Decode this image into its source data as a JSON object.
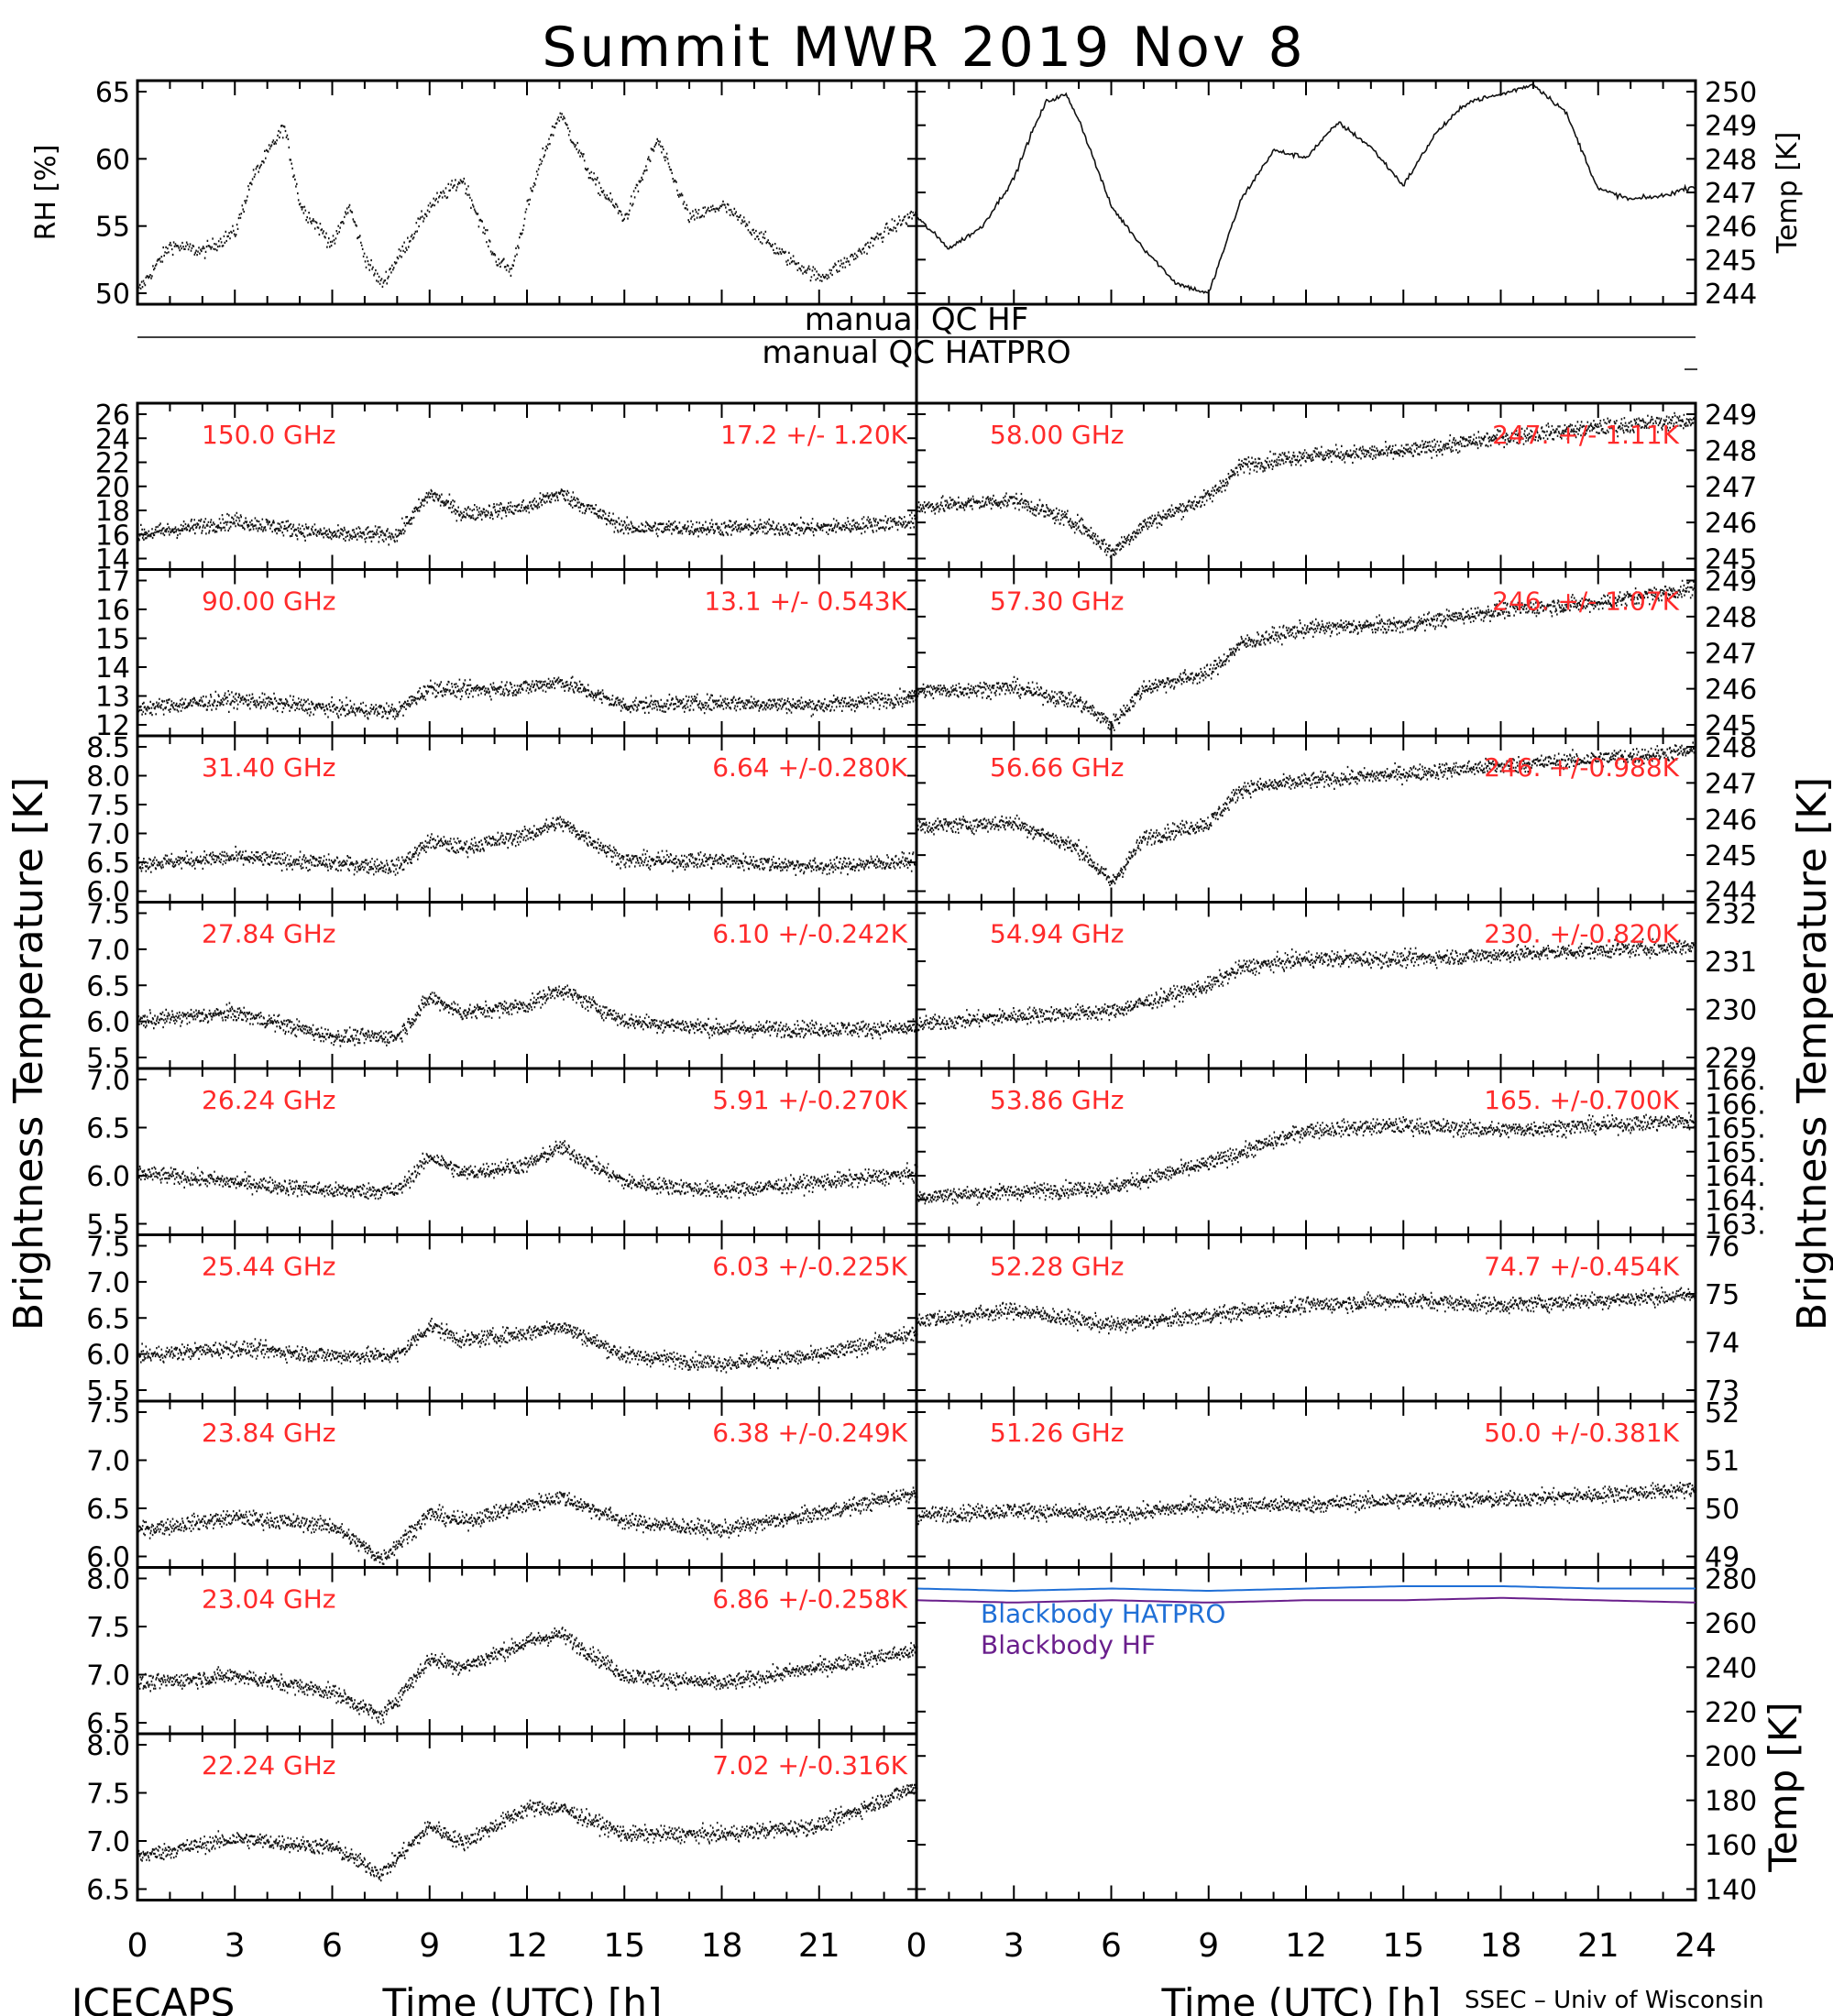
{
  "title": "Summit MWR 2019 Nov  8",
  "footer_left": "ICECAPS",
  "footer_right": "SSEC – Univ of Wisconsin",
  "x_label": "Time (UTC) [h]",
  "y_label_left": "Brightness Temperature [K]",
  "y_label_right": "Brightness Temperature [K]",
  "x_ticks": [
    "0",
    "3",
    "6",
    "9",
    "12",
    "15",
    "18",
    "21",
    "24"
  ],
  "qc_labels": [
    "manual QC HF",
    "manual QC HATPRO"
  ],
  "rh_panel": {
    "ylabel": "RH [%]",
    "ticks": [
      "50",
      "55",
      "60",
      "65"
    ]
  },
  "temp_panel": {
    "ylabel": "Temp [K]",
    "ticks": [
      "244",
      "245",
      "246",
      "247",
      "248",
      "249",
      "250"
    ]
  },
  "bb_panel": {
    "ylabel": "Temp [K]",
    "ticks": [
      "140",
      "160",
      "180",
      "200",
      "220",
      "240",
      "260",
      "280"
    ],
    "series": [
      {
        "name": "Blackbody HATPRO",
        "color": "#1f6fd6"
      },
      {
        "name": "Blackbody HF",
        "color": "#6a1f8c"
      }
    ]
  },
  "left_panels": [
    {
      "freq": "150.0 GHz",
      "stat": "17.2 +/-  1.20K",
      "ticks": [
        "14",
        "16",
        "18",
        "20",
        "22",
        "24",
        "26"
      ]
    },
    {
      "freq": "90.00 GHz",
      "stat": "13.1 +/- 0.543K",
      "ticks": [
        "12",
        "13",
        "14",
        "15",
        "16",
        "17"
      ]
    },
    {
      "freq": "31.40 GHz",
      "stat": "6.64 +/-0.280K",
      "ticks": [
        "6.0",
        "6.5",
        "7.0",
        "7.5",
        "8.0",
        "8.5"
      ]
    },
    {
      "freq": "27.84 GHz",
      "stat": "6.10 +/-0.242K",
      "ticks": [
        "5.5",
        "6.0",
        "6.5",
        "7.0",
        "7.5"
      ]
    },
    {
      "freq": "26.24 GHz",
      "stat": "5.91 +/-0.270K",
      "ticks": [
        "5.5",
        "6.0",
        "6.5",
        "7.0"
      ]
    },
    {
      "freq": "25.44 GHz",
      "stat": "6.03 +/-0.225K",
      "ticks": [
        "5.5",
        "6.0",
        "6.5",
        "7.0",
        "7.5"
      ]
    },
    {
      "freq": "23.84 GHz",
      "stat": "6.38 +/-0.249K",
      "ticks": [
        "6.0",
        "6.5",
        "7.0",
        "7.5"
      ]
    },
    {
      "freq": "23.04 GHz",
      "stat": "6.86 +/-0.258K",
      "ticks": [
        "6.5",
        "7.0",
        "7.5",
        "8.0"
      ]
    },
    {
      "freq": "22.24 GHz",
      "stat": "7.02 +/-0.316K",
      "ticks": [
        "6.5",
        "7.0",
        "7.5",
        "8.0"
      ]
    }
  ],
  "right_panels": [
    {
      "freq": "58.00 GHz",
      "stat": "247. +/- 1.11K",
      "ticks": [
        "245",
        "246",
        "247",
        "248",
        "249"
      ]
    },
    {
      "freq": "57.30 GHz",
      "stat": "246. +/- 1.07K",
      "ticks": [
        "245",
        "246",
        "247",
        "248",
        "249"
      ]
    },
    {
      "freq": "56.66 GHz",
      "stat": "246. +/-0.988K",
      "ticks": [
        "244",
        "245",
        "246",
        "247",
        "248"
      ]
    },
    {
      "freq": "54.94 GHz",
      "stat": "230. +/-0.820K",
      "ticks": [
        "229",
        "230",
        "231",
        "232"
      ]
    },
    {
      "freq": "53.86 GHz",
      "stat": "165. +/-0.700K",
      "ticks": [
        "163.",
        "164.",
        "164.",
        "165.",
        "165.",
        "166.",
        "166."
      ]
    },
    {
      "freq": "52.28 GHz",
      "stat": "74.7 +/-0.454K",
      "ticks": [
        "73",
        "74",
        "75",
        "76"
      ]
    },
    {
      "freq": "51.26 GHz",
      "stat": "50.0 +/-0.381K",
      "ticks": [
        "49",
        "50",
        "51",
        "52"
      ]
    }
  ],
  "chart_data": [
    {
      "type": "scatter",
      "title": "Summit MWR 2019 Nov  8",
      "xlabel": "Time (UTC) [h]",
      "ylabel": "RH [%]",
      "xlim": [
        0,
        24
      ],
      "ylim": [
        49.5,
        66.5
      ],
      "x": [
        0,
        1,
        2,
        3,
        3.5,
        4,
        4.5,
        5,
        6,
        6.5,
        7,
        7.5,
        8,
        9,
        10,
        11,
        11.5,
        12,
        12.5,
        13,
        14,
        15,
        16,
        17,
        18,
        19,
        20,
        21,
        22,
        23,
        24
      ],
      "y": [
        50.5,
        54,
        53.5,
        55,
        59,
        61,
        63,
        57,
        54,
        57,
        53,
        51,
        53,
        57,
        59,
        53,
        52,
        57,
        61,
        64,
        59,
        56,
        62,
        56,
        57,
        55,
        53,
        51.5,
        53,
        55,
        56.5
      ]
    },
    {
      "type": "line",
      "ylabel": "Temp [K]",
      "xlim": [
        0,
        24
      ],
      "ylim": [
        244,
        250.4
      ],
      "x": [
        0,
        1,
        2,
        3,
        3.5,
        4,
        4.6,
        5,
        6,
        7,
        8,
        9,
        10,
        11,
        12,
        13,
        14,
        15,
        16,
        17,
        18,
        19,
        20,
        21,
        22,
        23,
        24
      ],
      "y": [
        246.5,
        245.6,
        246.2,
        247.6,
        248.8,
        249.8,
        250.0,
        249.3,
        246.8,
        245.6,
        244.6,
        244.3,
        247.0,
        248.4,
        248.2,
        249.2,
        248.5,
        247.4,
        248.9,
        249.8,
        250.0,
        250.3,
        249.5,
        247.3,
        247.0,
        247.1,
        247.4
      ]
    },
    {
      "type": "scatter",
      "title": "150.0 GHz",
      "xlim": [
        0,
        24
      ],
      "ylim": [
        14,
        26
      ],
      "mean": 17.2,
      "std": 1.2,
      "x": [
        0,
        3,
        6,
        8,
        9,
        10,
        12,
        13,
        15,
        18,
        21,
        24
      ],
      "y": [
        16.5,
        17.5,
        16.5,
        16.5,
        19.5,
        18,
        18.5,
        19.5,
        17,
        17,
        17,
        17.5
      ]
    },
    {
      "type": "scatter",
      "title": "90.00 GHz",
      "xlim": [
        0,
        24
      ],
      "ylim": [
        12,
        17.5
      ],
      "mean": 13.1,
      "std": 0.543,
      "x": [
        0,
        3,
        6,
        8,
        9,
        10,
        12,
        13,
        15,
        18,
        21,
        24
      ],
      "y": [
        12.9,
        13.2,
        12.9,
        12.8,
        13.6,
        13.5,
        13.6,
        13.8,
        13,
        13.1,
        13,
        13.3
      ]
    },
    {
      "type": "scatter",
      "title": "31.40 GHz",
      "xlim": [
        0,
        24
      ],
      "ylim": [
        5.95,
        8.55
      ],
      "mean": 6.64,
      "std": 0.28,
      "x": [
        0,
        3,
        6,
        8,
        9,
        10,
        12,
        13,
        15,
        18,
        21,
        24
      ],
      "y": [
        6.55,
        6.65,
        6.55,
        6.5,
        6.9,
        6.8,
        7.0,
        7.2,
        6.6,
        6.6,
        6.5,
        6.6
      ]
    },
    {
      "type": "scatter",
      "title": "27.84 GHz",
      "xlim": [
        0,
        24
      ],
      "ylim": [
        5.5,
        7.6
      ],
      "mean": 6.1,
      "std": 0.242,
      "x": [
        0,
        3,
        6,
        8,
        9,
        10,
        12,
        13,
        15,
        18,
        21,
        24
      ],
      "y": [
        6.1,
        6.2,
        5.9,
        5.9,
        6.4,
        6.2,
        6.3,
        6.5,
        6.1,
        6.0,
        6.0,
        6.0
      ]
    },
    {
      "type": "scatter",
      "title": "26.24 GHz",
      "xlim": [
        0,
        24
      ],
      "ylim": [
        5.3,
        7.2
      ],
      "mean": 5.91,
      "std": 0.27,
      "x": [
        0,
        3,
        6,
        8,
        9,
        10,
        12,
        13,
        15,
        18,
        21,
        24
      ],
      "y": [
        6.0,
        5.9,
        5.8,
        5.8,
        6.2,
        6.0,
        6.1,
        6.3,
        5.9,
        5.8,
        5.9,
        6.0
      ]
    },
    {
      "type": "scatter",
      "title": "25.44 GHz",
      "xlim": [
        0,
        24
      ],
      "ylim": [
        5.4,
        7.6
      ],
      "mean": 6.03,
      "std": 0.225,
      "x": [
        0,
        3,
        6,
        8,
        9,
        10,
        12,
        13,
        15,
        18,
        21,
        24
      ],
      "y": [
        6.0,
        6.1,
        6.0,
        6.0,
        6.4,
        6.2,
        6.3,
        6.4,
        6.0,
        5.9,
        6.0,
        6.3
      ]
    },
    {
      "type": "scatter",
      "title": "23.84 GHz",
      "xlim": [
        0,
        24
      ],
      "ylim": [
        5.85,
        7.85
      ],
      "mean": 6.38,
      "std": 0.249,
      "x": [
        0,
        3,
        6,
        7.5,
        9,
        10,
        12,
        13,
        15,
        18,
        21,
        24
      ],
      "y": [
        6.3,
        6.45,
        6.35,
        5.95,
        6.5,
        6.4,
        6.6,
        6.7,
        6.4,
        6.3,
        6.5,
        6.75
      ]
    },
    {
      "type": "scatter",
      "title": "23.04 GHz",
      "xlim": [
        0,
        24
      ],
      "ylim": [
        6.2,
        8.2
      ],
      "mean": 6.86,
      "std": 0.258,
      "x": [
        0,
        3,
        6,
        7.5,
        9,
        10,
        12,
        13,
        15,
        18,
        21,
        24
      ],
      "y": [
        6.8,
        6.9,
        6.7,
        6.4,
        7.1,
        7.0,
        7.3,
        7.4,
        6.9,
        6.8,
        7.0,
        7.2
      ]
    },
    {
      "type": "scatter",
      "title": "22.24 GHz",
      "xlim": [
        0,
        24
      ],
      "ylim": [
        6.25,
        8.15
      ],
      "mean": 7.02,
      "std": 0.316,
      "x": [
        0,
        3,
        6,
        7.5,
        9,
        10,
        12,
        13,
        15,
        18,
        21,
        24
      ],
      "y": [
        6.75,
        6.95,
        6.85,
        6.55,
        7.1,
        6.9,
        7.3,
        7.3,
        7.0,
        7.0,
        7.1,
        7.55
      ]
    },
    {
      "type": "scatter",
      "title": "58.00 GHz",
      "xlim": [
        0,
        24
      ],
      "ylim": [
        244.5,
        249.3
      ],
      "mean": 247,
      "std": 1.11,
      "x": [
        0,
        3,
        5,
        6,
        7,
        9,
        10,
        12,
        15,
        18,
        21,
        24
      ],
      "y": [
        246.3,
        246.5,
        245.8,
        245,
        245.8,
        246.6,
        247.5,
        247.8,
        247.9,
        248.3,
        248.6,
        248.8
      ]
    },
    {
      "type": "scatter",
      "title": "57.30 GHz",
      "xlim": [
        0,
        24
      ],
      "ylim": [
        244.7,
        249.2
      ],
      "mean": 246,
      "std": 1.07,
      "x": [
        0,
        3,
        5,
        6,
        7,
        9,
        10,
        12,
        15,
        18,
        21,
        24
      ],
      "y": [
        245.9,
        246.0,
        245.6,
        245.0,
        246.0,
        246.4,
        247.2,
        247.6,
        247.7,
        248.1,
        248.3,
        248.7
      ]
    },
    {
      "type": "scatter",
      "title": "56.66 GHz",
      "xlim": [
        0,
        24
      ],
      "ylim": [
        243.9,
        248.3
      ],
      "mean": 246,
      "std": 0.988,
      "x": [
        0,
        3,
        5,
        6,
        7,
        9,
        10,
        12,
        15,
        18,
        21,
        24
      ],
      "y": [
        245.9,
        246.0,
        245.3,
        244.4,
        245.6,
        246.0,
        246.9,
        247.1,
        247.3,
        247.5,
        247.7,
        247.9
      ]
    },
    {
      "type": "scatter",
      "title": "54.94 GHz",
      "xlim": [
        0,
        24
      ],
      "ylim": [
        228.8,
        232.6
      ],
      "mean": 230,
      "std": 0.82,
      "x": [
        0,
        3,
        6,
        9,
        10,
        12,
        15,
        18,
        21,
        24
      ],
      "y": [
        229.8,
        230.0,
        230.1,
        230.7,
        231.1,
        231.3,
        231.3,
        231.4,
        231.5,
        231.6
      ]
    },
    {
      "type": "scatter",
      "title": "53.86 GHz",
      "xlim": [
        0,
        24
      ],
      "ylim": [
        163.3,
        166.8
      ],
      "mean": 165,
      "std": 0.7,
      "x": [
        0,
        3,
        6,
        9,
        12,
        15,
        18,
        21,
        24
      ],
      "y": [
        164.1,
        164.2,
        164.3,
        164.8,
        165.5,
        165.6,
        165.5,
        165.6,
        165.7
      ]
    },
    {
      "type": "scatter",
      "title": "52.28 GHz",
      "xlim": [
        0,
        24
      ],
      "ylim": [
        73,
        76.3
      ],
      "mean": 74.7,
      "std": 0.454,
      "x": [
        0,
        3,
        6,
        9,
        12,
        15,
        18,
        21,
        24
      ],
      "y": [
        74.6,
        74.8,
        74.5,
        74.7,
        74.9,
        75.0,
        74.9,
        75.0,
        75.1
      ]
    },
    {
      "type": "scatter",
      "title": "51.26 GHz",
      "xlim": [
        0,
        24
      ],
      "ylim": [
        48.9,
        52.1
      ],
      "mean": 50.0,
      "std": 0.381,
      "x": [
        0,
        3,
        6,
        9,
        12,
        15,
        18,
        21,
        24
      ],
      "y": [
        49.9,
        50.0,
        49.9,
        50.1,
        50.1,
        50.2,
        50.2,
        50.3,
        50.4
      ]
    },
    {
      "type": "line",
      "ylabel": "Temp [K]",
      "xlim": [
        0,
        24
      ],
      "ylim": [
        138,
        280
      ],
      "series": [
        {
          "name": "Blackbody HATPRO",
          "x": [
            0,
            3,
            6,
            9,
            12,
            15,
            18,
            21,
            24
          ],
          "values": [
            271,
            270,
            271,
            270,
            271,
            272,
            272,
            271,
            271
          ]
        },
        {
          "name": "Blackbody HF",
          "x": [
            0,
            3,
            6,
            9,
            12,
            15,
            18,
            21,
            24
          ],
          "values": [
            266,
            265,
            266,
            265,
            266,
            266,
            267,
            266,
            265
          ]
        }
      ]
    }
  ]
}
